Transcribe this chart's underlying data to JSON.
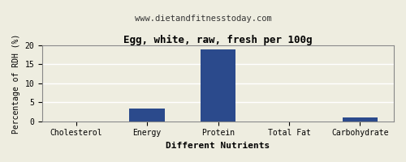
{
  "title": "Egg, white, raw, fresh per 100g",
  "subtitle": "www.dietandfitnesstoday.com",
  "xlabel": "Different Nutrients",
  "ylabel": "Percentage of RDH (%)",
  "categories": [
    "Cholesterol",
    "Energy",
    "Protein",
    "Total Fat",
    "Carbohydrate"
  ],
  "values": [
    0,
    3.3,
    19.0,
    0,
    1.0
  ],
  "bar_color": "#2b4a8c",
  "ylim": [
    0,
    20
  ],
  "yticks": [
    0,
    5,
    10,
    15,
    20
  ],
  "background_color": "#eeede0",
  "grid_color": "#ffffff",
  "title_fontsize": 9,
  "subtitle_fontsize": 7.5,
  "xlabel_fontsize": 8,
  "ylabel_fontsize": 7,
  "tick_fontsize": 7
}
